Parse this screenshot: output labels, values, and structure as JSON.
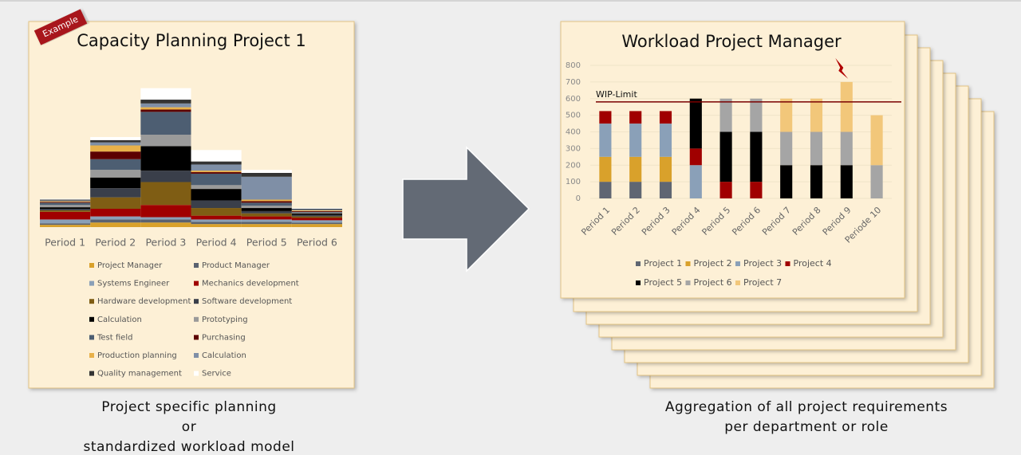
{
  "badge": "Example",
  "chart_data": [
    {
      "type": "stacked-bar",
      "title": "Capacity Planning Project 1",
      "categories": [
        "Period 1",
        "Period 2",
        "Period 3",
        "Period 4",
        "Period 5",
        "Period 6"
      ],
      "ylim": [
        0,
        190
      ],
      "series": [
        {
          "name": "Project Manager",
          "color": "#d9a12b",
          "values": [
            3,
            6,
            6,
            4,
            4,
            4
          ]
        },
        {
          "name": "Product Manager",
          "color": "#5a6270",
          "values": [
            2,
            4,
            4,
            3,
            3,
            2
          ]
        },
        {
          "name": "Systems Engineer",
          "color": "#8aa0b8",
          "values": [
            5,
            4,
            3,
            3,
            3,
            3
          ]
        },
        {
          "name": "Mechanics development",
          "color": "#a00000",
          "values": [
            10,
            10,
            16,
            5,
            4,
            3
          ]
        },
        {
          "name": "Hardware development",
          "color": "#7f5d14",
          "values": [
            2,
            15,
            30,
            10,
            4,
            2
          ]
        },
        {
          "name": "Software development",
          "color": "#3a3f4a",
          "values": [
            2,
            12,
            15,
            10,
            3,
            2
          ]
        },
        {
          "name": "Calculation",
          "color": "#000000",
          "values": [
            2,
            14,
            32,
            15,
            4,
            2
          ]
        },
        {
          "name": "Prototyping",
          "color": "#9a9a9a",
          "values": [
            3,
            10,
            15,
            5,
            3,
            1
          ]
        },
        {
          "name": "Test field",
          "color": "#4d5e72",
          "values": [
            3,
            14,
            30,
            15,
            4,
            1
          ]
        },
        {
          "name": "Purchasing",
          "color": "#5c0000",
          "values": [
            1,
            10,
            3,
            2,
            2,
            1
          ]
        },
        {
          "name": "Production planning",
          "color": "#e8b14a",
          "values": [
            1,
            8,
            3,
            2,
            2,
            1
          ]
        },
        {
          "name": "Calculation",
          "color": "#7f8fa6",
          "values": [
            1,
            4,
            5,
            8,
            30,
            1
          ]
        },
        {
          "name": "Quality management",
          "color": "#333333",
          "values": [
            1,
            3,
            5,
            4,
            5,
            1
          ]
        },
        {
          "name": "Service",
          "color": "#ffffff",
          "values": [
            1,
            4,
            15,
            15,
            4,
            1
          ]
        }
      ]
    },
    {
      "type": "stacked-bar",
      "title": "Workload Project Manager",
      "categories": [
        "Period 1",
        "Period 2",
        "Period 3",
        "Period 4",
        "Period 5",
        "Period 6",
        "Period 7",
        "Period 8",
        "Period 9",
        "Periode 10"
      ],
      "ylim": [
        0,
        800
      ],
      "yticks": [
        0,
        100,
        200,
        300,
        400,
        500,
        600,
        700,
        800
      ],
      "grid": true,
      "wip_limit": {
        "label": "WIP-Limit",
        "value": 580,
        "color": "#7a0000"
      },
      "series": [
        {
          "name": "Project 1",
          "color": "#5f6672",
          "values": [
            100,
            100,
            100,
            null,
            null,
            null,
            null,
            null,
            null,
            null
          ]
        },
        {
          "name": "Project 2",
          "color": "#d9a12b",
          "values": [
            150,
            150,
            150,
            null,
            null,
            null,
            null,
            null,
            null,
            null
          ]
        },
        {
          "name": "Project 3",
          "color": "#8aa0b8",
          "values": [
            200,
            200,
            200,
            200,
            null,
            null,
            null,
            null,
            null,
            null
          ]
        },
        {
          "name": "Project 4",
          "color": "#a00000",
          "values": [
            75,
            75,
            75,
            100,
            100,
            100,
            null,
            null,
            null,
            null
          ]
        },
        {
          "name": "Project 5",
          "color": "#000000",
          "values": [
            null,
            null,
            null,
            300,
            300,
            300,
            200,
            200,
            200,
            null
          ]
        },
        {
          "name": "Project 6",
          "color": "#a5a5a5",
          "values": [
            null,
            null,
            null,
            null,
            200,
            200,
            200,
            200,
            200,
            200
          ]
        },
        {
          "name": "Project 7",
          "color": "#f2c77a",
          "values": [
            null,
            null,
            null,
            null,
            null,
            null,
            200,
            200,
            300,
            300
          ]
        }
      ]
    }
  ],
  "captions": {
    "left": [
      "Project specific planning",
      "or",
      "standardized workload model"
    ],
    "right": [
      "Aggregation of all project requirements",
      "per department or role"
    ]
  }
}
